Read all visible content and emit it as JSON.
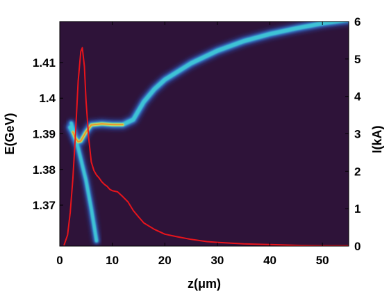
{
  "chart_data": {
    "type": "line",
    "title": "",
    "xlabel": "z(μm)",
    "ylabel_left": "E(GeV)",
    "ylabel_right": "I(kA)",
    "xlim": [
      0,
      55
    ],
    "ylim_left": [
      1.3585,
      1.4215
    ],
    "ylim_right": [
      0,
      6
    ],
    "xticks": [
      "0",
      "10",
      "20",
      "30",
      "40",
      "50"
    ],
    "yticks_left": [
      "1.37",
      "1.38",
      "1.39",
      "1.4",
      "1.41"
    ],
    "yticks_right": [
      "0",
      "1",
      "2",
      "3",
      "4",
      "5",
      "6"
    ],
    "background_color": "#2e1339",
    "current_color": "#e8141c",
    "energy_series": {
      "name": "",
      "display": "density",
      "x": [
        2.0,
        2.5,
        3.0,
        3.5,
        4.0,
        5.0,
        6.0,
        8.0,
        10.0,
        12.0,
        14.0,
        16.0,
        18.0,
        20.0,
        25.0,
        30.0,
        35.0,
        40.0,
        45.0,
        50.0,
        55.0
      ],
      "y": [
        1.3918,
        1.3905,
        1.3888,
        1.3878,
        1.388,
        1.3905,
        1.3925,
        1.3928,
        1.3926,
        1.3926,
        1.394,
        1.399,
        1.4025,
        1.4052,
        1.4098,
        1.4133,
        1.416,
        1.418,
        1.4196,
        1.421,
        1.422
      ]
    },
    "energy_tail": {
      "x": [
        2.2,
        2.6,
        3.0,
        3.5,
        4.0,
        4.5,
        5.0,
        5.5,
        6.0,
        6.5,
        7.0
      ],
      "y": [
        1.393,
        1.391,
        1.3885,
        1.386,
        1.383,
        1.38,
        1.377,
        1.373,
        1.369,
        1.3645,
        1.36
      ]
    },
    "current_series": {
      "name": "",
      "x": [
        0.8,
        1.5,
        2.0,
        2.5,
        3.0,
        3.5,
        4.0,
        4.3,
        4.7,
        5.0,
        5.5,
        6.0,
        6.5,
        7.0,
        7.5,
        8.0,
        8.5,
        9.0,
        9.5,
        10.0,
        11.0,
        12.0,
        13.0,
        14.0,
        15.0,
        16.0,
        18.0,
        20.0,
        22.0,
        25.0,
        28.0,
        30.0,
        35.0,
        40.0,
        45.0,
        50.0,
        55.0
      ],
      "y": [
        0.02,
        0.3,
        0.9,
        1.8,
        3.0,
        4.4,
        5.2,
        5.3,
        4.8,
        3.9,
        2.9,
        2.25,
        2.02,
        1.9,
        1.82,
        1.72,
        1.65,
        1.6,
        1.52,
        1.48,
        1.45,
        1.32,
        1.18,
        0.95,
        0.78,
        0.62,
        0.45,
        0.32,
        0.26,
        0.18,
        0.12,
        0.1,
        0.06,
        0.04,
        0.02,
        0.01,
        0.01
      ]
    }
  }
}
